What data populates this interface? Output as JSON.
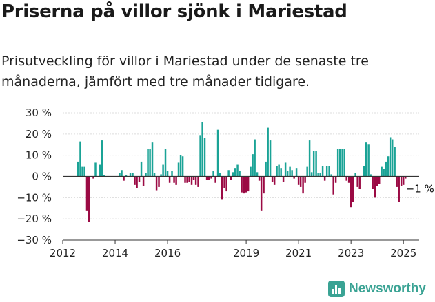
{
  "title": "Priserna på villor sjönk i Mariestad",
  "subtitle": "Prisutveckling för villor i Mariestad under de senaste tre månaderna, jämfört med tre månader tidigare.",
  "brand": {
    "name": "Newsworthy",
    "color": "#3aa394",
    "icon": "bar-chart-logo-icon"
  },
  "colors": {
    "positive": "#1aa396",
    "negative": "#9b0a44"
  },
  "chart_data": {
    "type": "bar",
    "ylim": [
      -30,
      30
    ],
    "y_ticks": [
      30,
      20,
      10,
      0,
      -10,
      -20,
      -30
    ],
    "y_tick_labels": [
      "30 %",
      "20 %",
      "10 %",
      "0 %",
      "−10 %",
      "−20 %",
      "−30 %"
    ],
    "x_ticks": [
      2012,
      2014,
      2016,
      2019,
      2021,
      2023,
      2025
    ],
    "x_tick_labels": [
      "2012",
      "2014",
      "2016",
      "2019",
      "2021",
      "2023",
      "2025"
    ],
    "x_domain": [
      2012.0,
      2025.6
    ],
    "annotation": "−1 %",
    "grid": true,
    "points": [
      {
        "x": 2012.58,
        "y": 7
      },
      {
        "x": 2012.67,
        "y": 16.5
      },
      {
        "x": 2012.75,
        "y": 4.5
      },
      {
        "x": 2012.83,
        "y": 4.5
      },
      {
        "x": 2012.92,
        "y": -16
      },
      {
        "x": 2013.0,
        "y": -21.5
      },
      {
        "x": 2013.17,
        "y": -1
      },
      {
        "x": 2013.25,
        "y": 6.5
      },
      {
        "x": 2013.42,
        "y": 5.5
      },
      {
        "x": 2013.5,
        "y": 17
      },
      {
        "x": 2013.58,
        "y": 0.5
      },
      {
        "x": 2014.17,
        "y": 1.5
      },
      {
        "x": 2014.25,
        "y": 3
      },
      {
        "x": 2014.33,
        "y": -2
      },
      {
        "x": 2014.42,
        "y": 0.5
      },
      {
        "x": 2014.58,
        "y": 1.5
      },
      {
        "x": 2014.67,
        "y": 1.5
      },
      {
        "x": 2014.75,
        "y": -4
      },
      {
        "x": 2014.83,
        "y": -5.5
      },
      {
        "x": 2014.92,
        "y": -2.5
      },
      {
        "x": 2015.0,
        "y": 7
      },
      {
        "x": 2015.08,
        "y": -4.5
      },
      {
        "x": 2015.17,
        "y": 1.5
      },
      {
        "x": 2015.25,
        "y": 13
      },
      {
        "x": 2015.33,
        "y": 13
      },
      {
        "x": 2015.42,
        "y": 16
      },
      {
        "x": 2015.5,
        "y": 1.5
      },
      {
        "x": 2015.58,
        "y": -6.5
      },
      {
        "x": 2015.67,
        "y": -5
      },
      {
        "x": 2015.75,
        "y": 1
      },
      {
        "x": 2015.83,
        "y": 5.5
      },
      {
        "x": 2015.92,
        "y": 13
      },
      {
        "x": 2016.0,
        "y": 2.5
      },
      {
        "x": 2016.08,
        "y": -3
      },
      {
        "x": 2016.17,
        "y": 2.5
      },
      {
        "x": 2016.25,
        "y": -3
      },
      {
        "x": 2016.33,
        "y": -4
      },
      {
        "x": 2016.42,
        "y": 6.5
      },
      {
        "x": 2016.5,
        "y": 10
      },
      {
        "x": 2016.58,
        "y": 9.5
      },
      {
        "x": 2016.67,
        "y": -3
      },
      {
        "x": 2016.75,
        "y": -3
      },
      {
        "x": 2016.83,
        "y": -2.5
      },
      {
        "x": 2016.92,
        "y": -4
      },
      {
        "x": 2017.0,
        "y": -1.5
      },
      {
        "x": 2017.08,
        "y": -4
      },
      {
        "x": 2017.17,
        "y": -5
      },
      {
        "x": 2017.25,
        "y": 19.5
      },
      {
        "x": 2017.33,
        "y": 25.5
      },
      {
        "x": 2017.42,
        "y": 18
      },
      {
        "x": 2017.5,
        "y": -1.5
      },
      {
        "x": 2017.58,
        "y": -1.5
      },
      {
        "x": 2017.67,
        "y": -1
      },
      {
        "x": 2017.75,
        "y": 2.5
      },
      {
        "x": 2017.83,
        "y": -3
      },
      {
        "x": 2017.92,
        "y": 22
      },
      {
        "x": 2018.0,
        "y": 1.5
      },
      {
        "x": 2018.08,
        "y": -11
      },
      {
        "x": 2018.17,
        "y": -5.5
      },
      {
        "x": 2018.25,
        "y": -7
      },
      {
        "x": 2018.33,
        "y": 3
      },
      {
        "x": 2018.42,
        "y": -1.5
      },
      {
        "x": 2018.5,
        "y": 2
      },
      {
        "x": 2018.58,
        "y": 4
      },
      {
        "x": 2018.67,
        "y": 5.5
      },
      {
        "x": 2018.75,
        "y": 2.5
      },
      {
        "x": 2018.83,
        "y": -7.5
      },
      {
        "x": 2018.92,
        "y": -8
      },
      {
        "x": 2019.0,
        "y": -7.5
      },
      {
        "x": 2019.08,
        "y": -7
      },
      {
        "x": 2019.17,
        "y": 4.5
      },
      {
        "x": 2019.25,
        "y": 10.5
      },
      {
        "x": 2019.33,
        "y": 17.5
      },
      {
        "x": 2019.42,
        "y": 2
      },
      {
        "x": 2019.5,
        "y": -2
      },
      {
        "x": 2019.58,
        "y": -16
      },
      {
        "x": 2019.67,
        "y": -8
      },
      {
        "x": 2019.75,
        "y": 7
      },
      {
        "x": 2019.83,
        "y": 23
      },
      {
        "x": 2019.92,
        "y": 17
      },
      {
        "x": 2020.0,
        "y": -2.5
      },
      {
        "x": 2020.08,
        "y": -4
      },
      {
        "x": 2020.17,
        "y": 5
      },
      {
        "x": 2020.25,
        "y": 5.5
      },
      {
        "x": 2020.33,
        "y": 4
      },
      {
        "x": 2020.42,
        "y": -2.5
      },
      {
        "x": 2020.5,
        "y": 6.5
      },
      {
        "x": 2020.58,
        "y": 2.5
      },
      {
        "x": 2020.67,
        "y": 4.5
      },
      {
        "x": 2020.75,
        "y": 3
      },
      {
        "x": 2020.83,
        "y": -1
      },
      {
        "x": 2020.92,
        "y": 4
      },
      {
        "x": 2021.0,
        "y": -4
      },
      {
        "x": 2021.08,
        "y": -5
      },
      {
        "x": 2021.17,
        "y": -8
      },
      {
        "x": 2021.25,
        "y": -3
      },
      {
        "x": 2021.33,
        "y": 4.5
      },
      {
        "x": 2021.42,
        "y": 17
      },
      {
        "x": 2021.5,
        "y": 2
      },
      {
        "x": 2021.58,
        "y": 12
      },
      {
        "x": 2021.67,
        "y": 12
      },
      {
        "x": 2021.75,
        "y": 1.5
      },
      {
        "x": 2021.83,
        "y": 1.5
      },
      {
        "x": 2021.92,
        "y": 5
      },
      {
        "x": 2022.0,
        "y": -2
      },
      {
        "x": 2022.08,
        "y": 5
      },
      {
        "x": 2022.17,
        "y": 5
      },
      {
        "x": 2022.25,
        "y": 1
      },
      {
        "x": 2022.33,
        "y": -8.5
      },
      {
        "x": 2022.42,
        "y": -3
      },
      {
        "x": 2022.5,
        "y": 13
      },
      {
        "x": 2022.58,
        "y": 13
      },
      {
        "x": 2022.67,
        "y": 13
      },
      {
        "x": 2022.75,
        "y": 13
      },
      {
        "x": 2022.83,
        "y": -2
      },
      {
        "x": 2022.92,
        "y": -3
      },
      {
        "x": 2023.0,
        "y": -14.5
      },
      {
        "x": 2023.08,
        "y": -12
      },
      {
        "x": 2023.17,
        "y": 1.5
      },
      {
        "x": 2023.25,
        "y": -5
      },
      {
        "x": 2023.33,
        "y": -6
      },
      {
        "x": 2023.5,
        "y": 5
      },
      {
        "x": 2023.58,
        "y": 16
      },
      {
        "x": 2023.67,
        "y": 15
      },
      {
        "x": 2023.75,
        "y": 1
      },
      {
        "x": 2023.83,
        "y": -6
      },
      {
        "x": 2023.92,
        "y": -10
      },
      {
        "x": 2024.0,
        "y": -4.5
      },
      {
        "x": 2024.08,
        "y": -3.5
      },
      {
        "x": 2024.17,
        "y": 4.5
      },
      {
        "x": 2024.25,
        "y": 3.5
      },
      {
        "x": 2024.33,
        "y": 7
      },
      {
        "x": 2024.42,
        "y": 9.5
      },
      {
        "x": 2024.5,
        "y": 18.5
      },
      {
        "x": 2024.58,
        "y": 17.5
      },
      {
        "x": 2024.67,
        "y": 14
      },
      {
        "x": 2024.75,
        "y": -5
      },
      {
        "x": 2024.83,
        "y": -12
      },
      {
        "x": 2024.92,
        "y": -4.5
      },
      {
        "x": 2025.0,
        "y": -4
      },
      {
        "x": 2025.08,
        "y": -1
      }
    ]
  }
}
